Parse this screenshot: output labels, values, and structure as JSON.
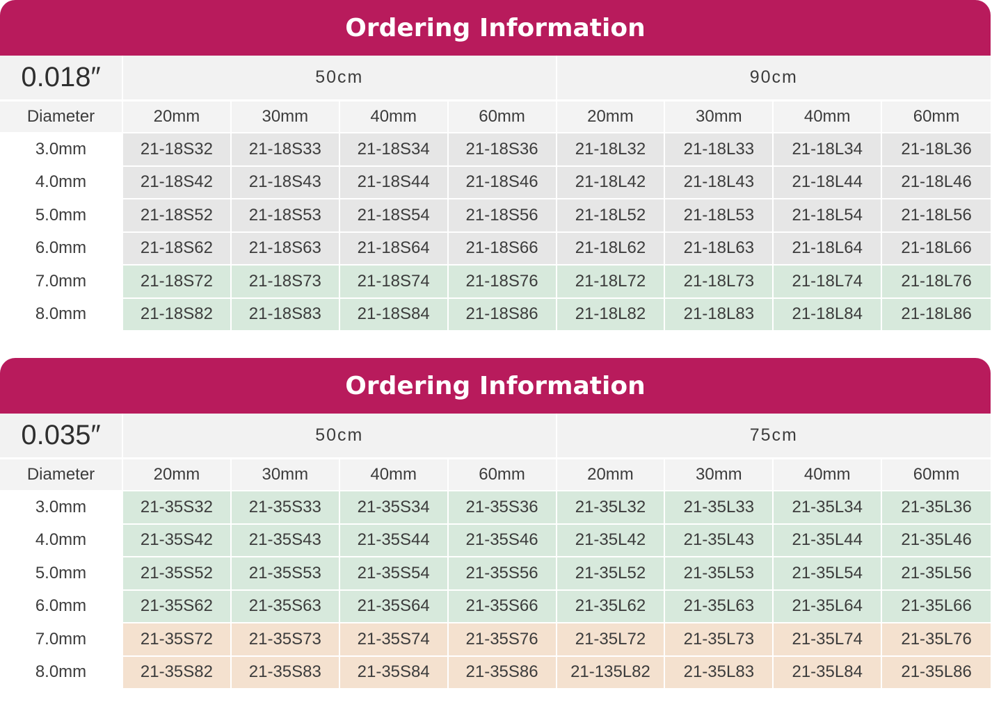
{
  "tables": [
    {
      "banner": "Ordering Information",
      "size": "0.018″",
      "groups": [
        "50cm",
        "90cm"
      ],
      "diameter_label": "Diameter",
      "lengths": [
        "20mm",
        "30mm",
        "40mm",
        "60mm",
        "20mm",
        "30mm",
        "40mm",
        "60mm"
      ],
      "rows": [
        {
          "diameter": "3.0mm",
          "codes": [
            "21-18S32",
            "21-18S33",
            "21-18S34",
            "21-18S36",
            "21-18L32",
            "21-18L33",
            "21-18L34",
            "21-18L36"
          ],
          "color": "gray"
        },
        {
          "diameter": "4.0mm",
          "codes": [
            "21-18S42",
            "21-18S43",
            "21-18S44",
            "21-18S46",
            "21-18L42",
            "21-18L43",
            "21-18L44",
            "21-18L46"
          ],
          "color": "gray"
        },
        {
          "diameter": "5.0mm",
          "codes": [
            "21-18S52",
            "21-18S53",
            "21-18S54",
            "21-18S56",
            "21-18L52",
            "21-18L53",
            "21-18L54",
            "21-18L56"
          ],
          "color": "gray"
        },
        {
          "diameter": "6.0mm",
          "codes": [
            "21-18S62",
            "21-18S63",
            "21-18S64",
            "21-18S66",
            "21-18L62",
            "21-18L63",
            "21-18L64",
            "21-18L66"
          ],
          "color": "gray"
        },
        {
          "diameter": "7.0mm",
          "codes": [
            "21-18S72",
            "21-18S73",
            "21-18S74",
            "21-18S76",
            "21-18L72",
            "21-18L73",
            "21-18L74",
            "21-18L76"
          ],
          "color": "green"
        },
        {
          "diameter": "8.0mm",
          "codes": [
            "21-18S82",
            "21-18S83",
            "21-18S84",
            "21-18S86",
            "21-18L82",
            "21-18L83",
            "21-18L84",
            "21-18L86"
          ],
          "color": "green"
        }
      ]
    },
    {
      "banner": "Ordering Information",
      "size": "0.035″",
      "groups": [
        "50cm",
        "75cm"
      ],
      "diameter_label": "Diameter",
      "lengths": [
        "20mm",
        "30mm",
        "40mm",
        "60mm",
        "20mm",
        "30mm",
        "40mm",
        "60mm"
      ],
      "rows": [
        {
          "diameter": "3.0mm",
          "codes": [
            "21-35S32",
            "21-35S33",
            "21-35S34",
            "21-35S36",
            "21-35L32",
            "21-35L33",
            "21-35L34",
            "21-35L36"
          ],
          "color": "green"
        },
        {
          "diameter": "4.0mm",
          "codes": [
            "21-35S42",
            "21-35S43",
            "21-35S44",
            "21-35S46",
            "21-35L42",
            "21-35L43",
            "21-35L44",
            "21-35L46"
          ],
          "color": "green"
        },
        {
          "diameter": "5.0mm",
          "codes": [
            "21-35S52",
            "21-35S53",
            "21-35S54",
            "21-35S56",
            "21-35L52",
            "21-35L53",
            "21-35L54",
            "21-35L56"
          ],
          "color": "green"
        },
        {
          "diameter": "6.0mm",
          "codes": [
            "21-35S62",
            "21-35S63",
            "21-35S64",
            "21-35S66",
            "21-35L62",
            "21-35L63",
            "21-35L64",
            "21-35L66"
          ],
          "color": "green"
        },
        {
          "diameter": "7.0mm",
          "codes": [
            "21-35S72",
            "21-35S73",
            "21-35S74",
            "21-35S76",
            "21-35L72",
            "21-35L73",
            "21-35L74",
            "21-35L76"
          ],
          "color": "peach"
        },
        {
          "diameter": "8.0mm",
          "codes": [
            "21-35S82",
            "21-35S83",
            "21-35S84",
            "21-35S86",
            "21-135L82",
            "21-35L83",
            "21-35L84",
            "21-35L86"
          ],
          "color": "peach"
        }
      ]
    }
  ],
  "colors": {
    "banner": "#b81b5c",
    "gray": "#e6e6e6",
    "green": "#d7e9dc",
    "peach": "#f4e1cf"
  }
}
